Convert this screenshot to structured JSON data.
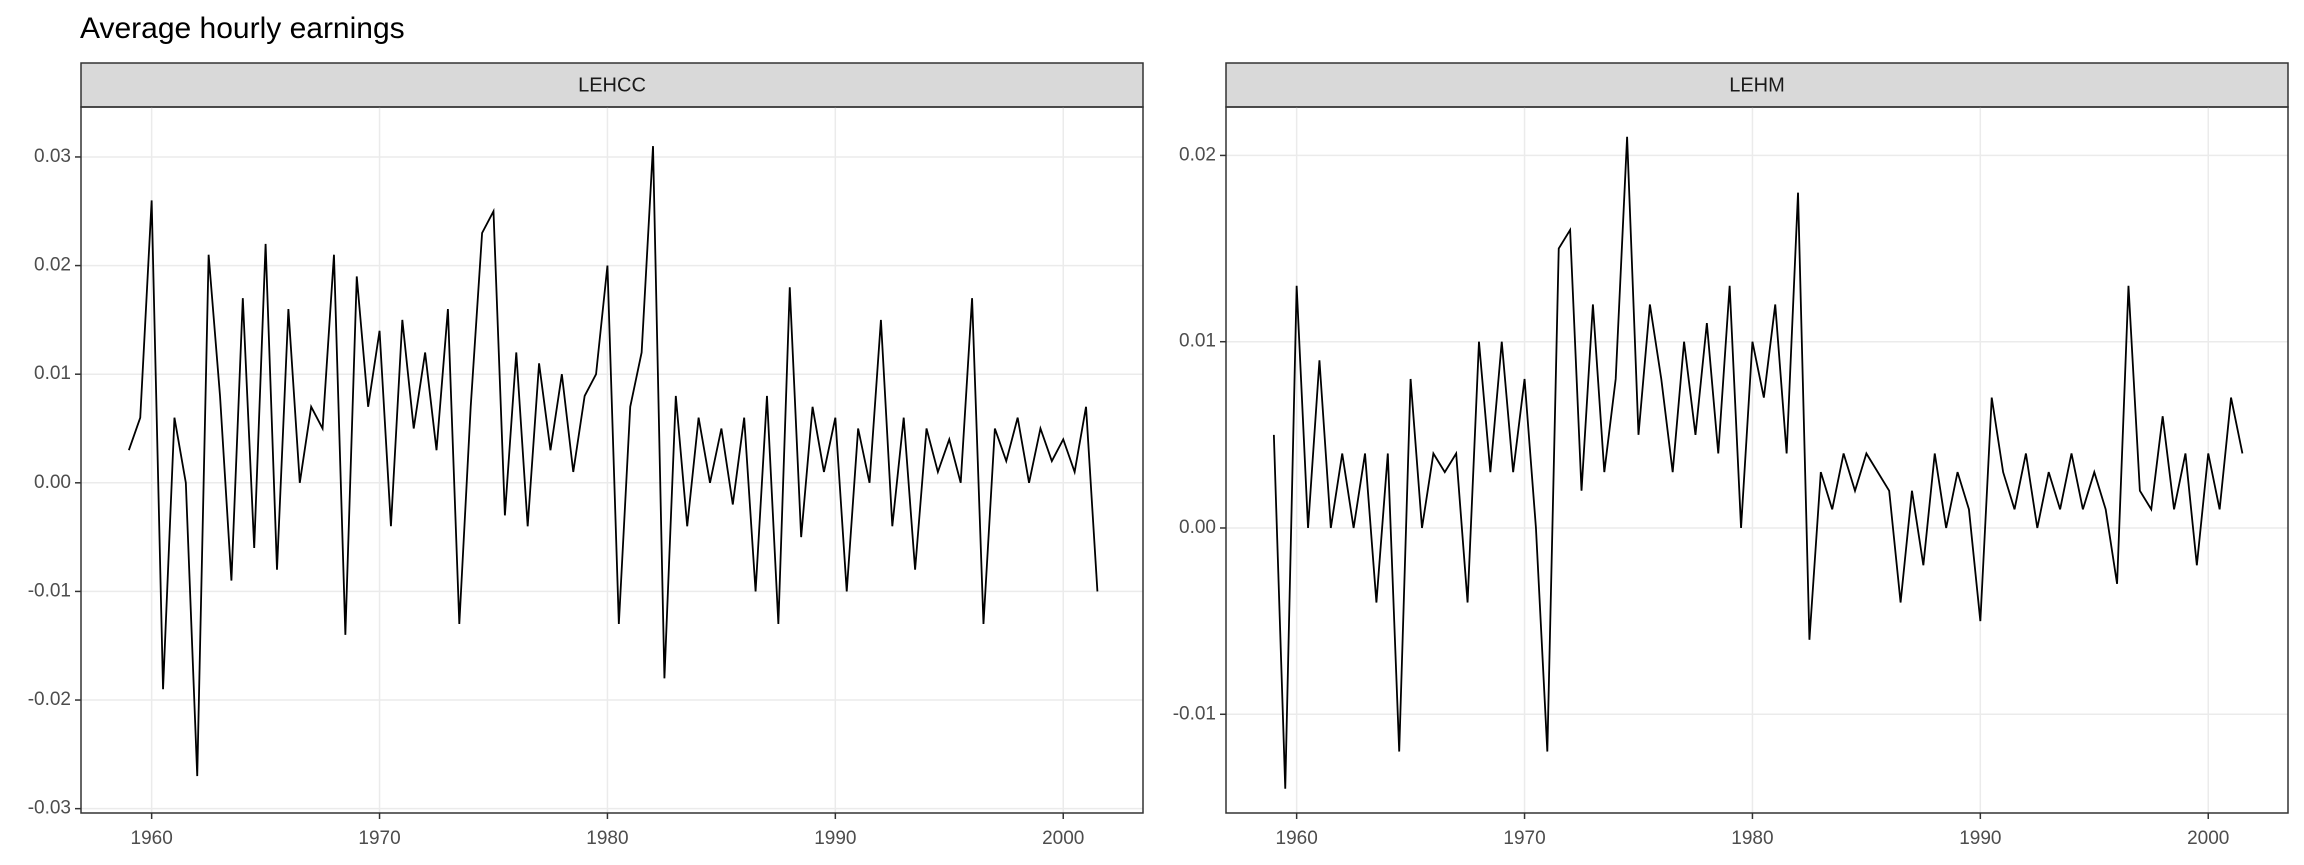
{
  "title": "Average hourly earnings",
  "chart_data": [
    {
      "type": "line",
      "facet": "LEHCC",
      "x": [
        1959,
        1959.5,
        1960,
        1960.5,
        1961,
        1961.5,
        1962,
        1962.5,
        1963,
        1963.5,
        1964,
        1964.5,
        1965,
        1965.5,
        1966,
        1966.5,
        1967,
        1967.5,
        1968,
        1968.5,
        1969,
        1969.5,
        1970,
        1970.5,
        1971,
        1971.5,
        1972,
        1972.5,
        1973,
        1973.5,
        1974,
        1974.5,
        1975,
        1975.5,
        1976,
        1976.5,
        1977,
        1977.5,
        1978,
        1978.5,
        1979,
        1979.5,
        1980,
        1980.5,
        1981,
        1981.5,
        1982,
        1982.5,
        1983,
        1983.5,
        1984,
        1984.5,
        1985,
        1985.5,
        1986,
        1986.5,
        1987,
        1987.5,
        1988,
        1988.5,
        1989,
        1989.5,
        1990,
        1990.5,
        1991,
        1991.5,
        1992,
        1992.5,
        1993,
        1993.5,
        1994,
        1994.5,
        1995,
        1995.5,
        1996,
        1996.5,
        1997,
        1997.5,
        1998,
        1998.5,
        1999,
        1999.5,
        2000,
        2000.5,
        2001,
        2001.5
      ],
      "series": [
        {
          "color": "#000000",
          "values": [
            0.003,
            0.006,
            0.026,
            -0.019,
            0.006,
            0.0,
            -0.027,
            0.021,
            0.008,
            -0.009,
            0.017,
            -0.006,
            0.022,
            -0.008,
            0.016,
            0.0,
            0.007,
            0.005,
            0.021,
            -0.014,
            0.019,
            0.007,
            0.014,
            -0.004,
            0.015,
            0.005,
            0.012,
            0.003,
            0.016,
            -0.013,
            0.007,
            0.023,
            0.025,
            -0.003,
            0.012,
            -0.004,
            0.011,
            0.003,
            0.01,
            0.001,
            0.008,
            0.01,
            0.02,
            -0.013,
            0.007,
            0.012,
            0.031,
            -0.018,
            0.008,
            -0.004,
            0.006,
            0.0,
            0.005,
            -0.002,
            0.006,
            -0.01,
            0.008,
            -0.013,
            0.018,
            -0.005,
            0.007,
            0.001,
            0.006,
            -0.01,
            0.005,
            0.0,
            0.015,
            -0.004,
            0.006,
            -0.008,
            0.005,
            0.001,
            0.004,
            0.0,
            0.017,
            -0.013,
            0.005,
            0.002,
            0.006,
            0.0,
            0.005,
            0.002,
            0.004,
            0.001,
            0.007,
            -0.01
          ]
        }
      ],
      "xlim": [
        1956.9,
        2003.5
      ],
      "xticks": [
        1960,
        1970,
        1980,
        1990,
        2000
      ],
      "ylim": [
        -0.0304,
        0.0346
      ],
      "yticks": [
        -0.03,
        -0.02,
        -0.01,
        {
          "value": 0,
          "label": "0.00"
        },
        0.01,
        0.02,
        0.03
      ],
      "grid": true
    },
    {
      "type": "line",
      "facet": "LEHM",
      "x": [
        1959,
        1959.5,
        1960,
        1960.5,
        1961,
        1961.5,
        1962,
        1962.5,
        1963,
        1963.5,
        1964,
        1964.5,
        1965,
        1965.5,
        1966,
        1966.5,
        1967,
        1967.5,
        1968,
        1968.5,
        1969,
        1969.5,
        1970,
        1970.5,
        1971,
        1971.5,
        1972,
        1972.5,
        1973,
        1973.5,
        1974,
        1974.5,
        1975,
        1975.5,
        1976,
        1976.5,
        1977,
        1977.5,
        1978,
        1978.5,
        1979,
        1979.5,
        1980,
        1980.5,
        1981,
        1981.5,
        1982,
        1982.5,
        1983,
        1983.5,
        1984,
        1984.5,
        1985,
        1985.5,
        1986,
        1986.5,
        1987,
        1987.5,
        1988,
        1988.5,
        1989,
        1989.5,
        1990,
        1990.5,
        1991,
        1991.5,
        1992,
        1992.5,
        1993,
        1993.5,
        1994,
        1994.5,
        1995,
        1995.5,
        1996,
        1996.5,
        1997,
        1997.5,
        1998,
        1998.5,
        1999,
        1999.5,
        2000,
        2000.5,
        2001,
        2001.5
      ],
      "series": [
        {
          "color": "#000000",
          "values": [
            0.005,
            -0.014,
            0.013,
            0.0,
            0.009,
            0.0,
            0.004,
            0.0,
            0.004,
            -0.004,
            0.004,
            -0.012,
            0.008,
            0.0,
            0.004,
            0.003,
            0.004,
            -0.004,
            0.01,
            0.003,
            0.01,
            0.003,
            0.008,
            0.0,
            -0.012,
            0.015,
            0.016,
            0.002,
            0.012,
            0.003,
            0.008,
            0.021,
            0.005,
            0.012,
            0.008,
            0.003,
            0.01,
            0.005,
            0.011,
            0.004,
            0.013,
            0.0,
            0.01,
            0.007,
            0.012,
            0.004,
            0.018,
            -0.006,
            0.003,
            0.001,
            0.004,
            0.002,
            0.004,
            0.003,
            0.002,
            -0.004,
            0.002,
            -0.002,
            0.004,
            0.0,
            0.003,
            0.001,
            -0.005,
            0.007,
            0.003,
            0.001,
            0.004,
            0.0,
            0.003,
            0.001,
            0.004,
            0.001,
            0.003,
            0.001,
            -0.003,
            0.013,
            0.002,
            0.001,
            0.006,
            0.001,
            0.004,
            -0.002,
            0.004,
            0.001,
            0.007,
            0.004
          ]
        }
      ],
      "xlim": [
        1956.9,
        2003.5
      ],
      "xticks": [
        1960,
        1970,
        1980,
        1990,
        2000
      ],
      "ylim": [
        -0.0153,
        0.0226
      ],
      "yticks": [
        -0.01,
        {
          "value": 0,
          "label": "0.00"
        },
        0.01,
        0.02
      ],
      "grid": true
    }
  ]
}
